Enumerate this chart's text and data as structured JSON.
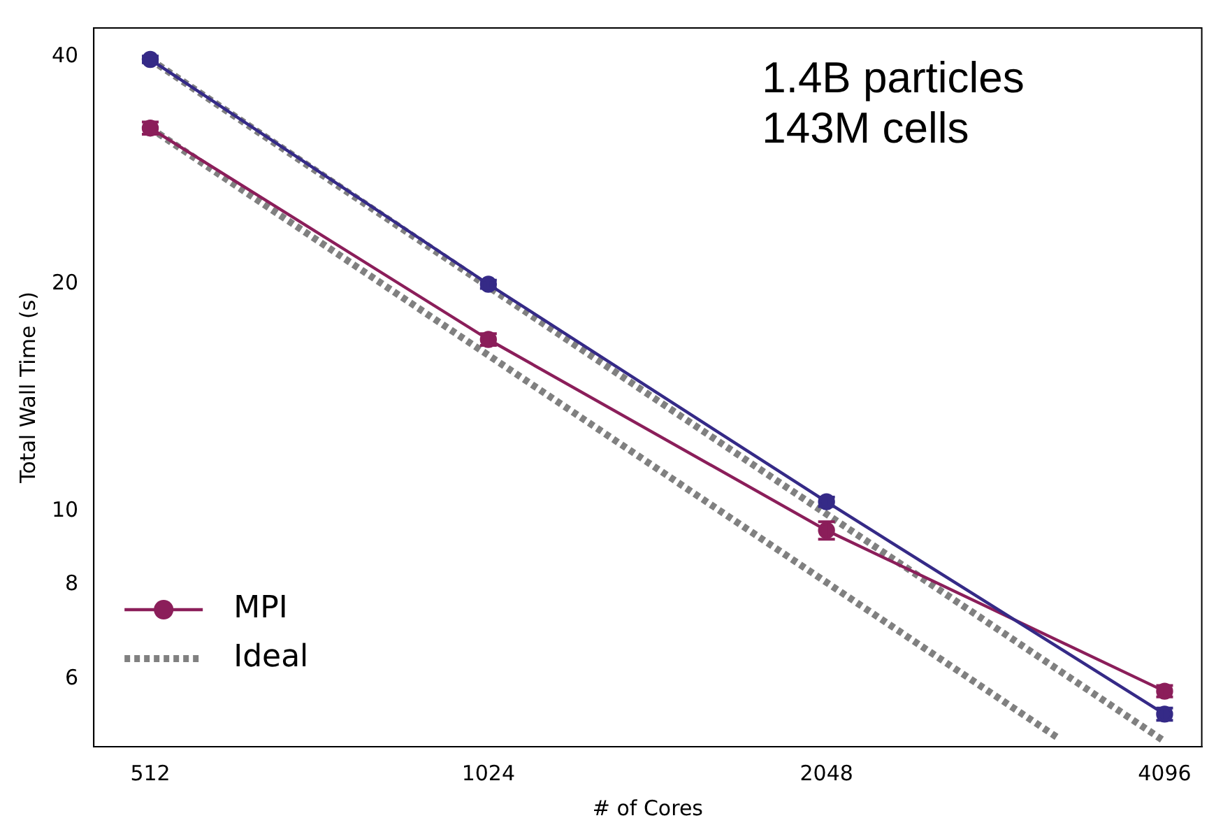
{
  "chart_data": {
    "type": "line",
    "xlabel": "# of Cores",
    "ylabel": "Total Wall Time (s)",
    "annotations": [
      "1.4B particles\n143M cells"
    ],
    "log": "xy",
    "xlim": [
      456,
      4420
    ],
    "xticks": [
      512,
      1024,
      2048,
      4096
    ],
    "ylim": [
      4.88,
      43.7
    ],
    "yticks": [
      6,
      8,
      10,
      20,
      40
    ],
    "grid": false,
    "legend": "bottom left",
    "series": [
      {
        "color": "#352a87",
        "x": [
          512,
          1024,
          2048,
          4096
        ],
        "values": [
          39.7,
          20,
          10.3,
          5.39
        ],
        "errors": [
          0.4,
          0.25,
          0.15,
          0.1
        ],
        "marker": "circle",
        "line_style": "solid"
      },
      {
        "name": "MPI",
        "color": "#8b1e5a",
        "x": [
          512,
          1024,
          2048,
          4096
        ],
        "values": [
          32.2,
          16.9,
          9.44,
          5.78
        ],
        "errors": [
          0.6,
          0.3,
          0.25,
          0.1
        ],
        "marker": "circle",
        "line_style": "solid"
      },
      {
        "name": "Ideal",
        "color": "#808080",
        "x": [
          512,
          4096
        ],
        "values": [
          39.7,
          4.96
        ],
        "line_style": "dotted"
      },
      {
        "color": "#808080",
        "x": [
          512,
          3300
        ],
        "values": [
          32.2,
          5.0
        ],
        "line_style": "dotted"
      }
    ]
  }
}
